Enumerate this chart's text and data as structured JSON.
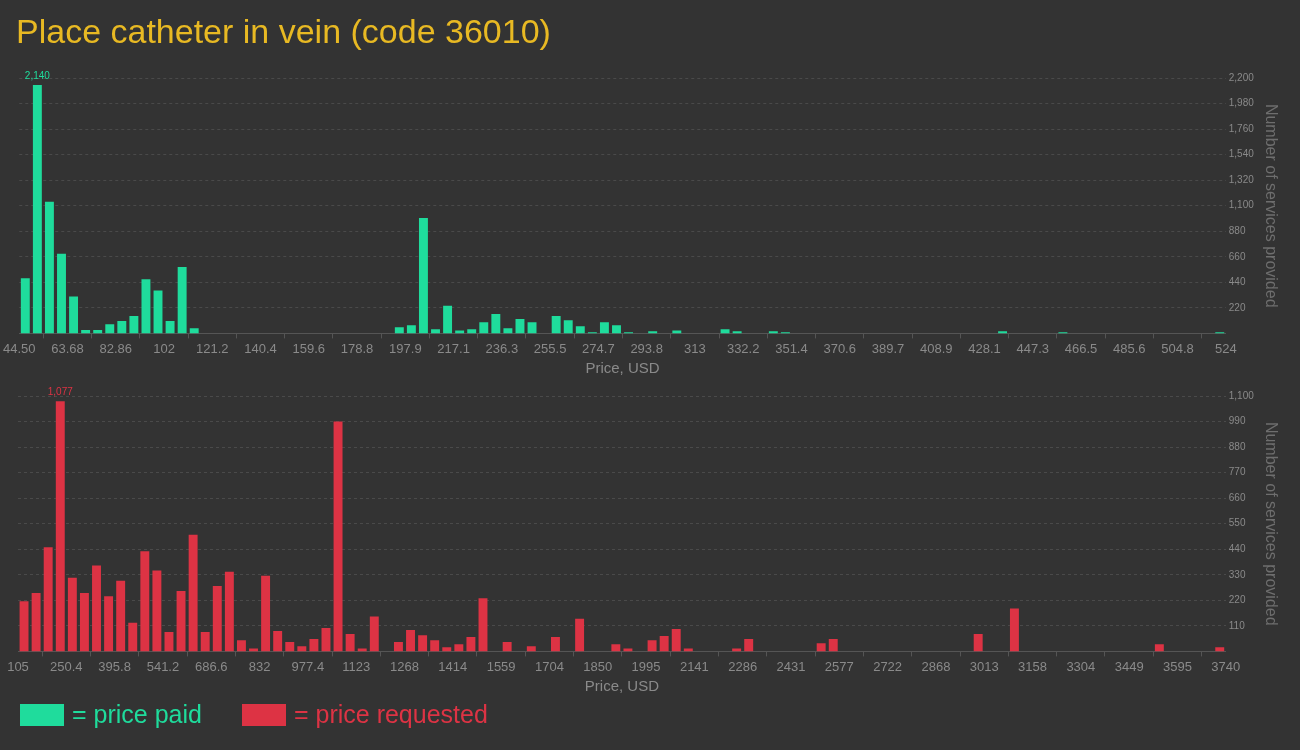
{
  "chart_data": [
    {
      "type": "histogram",
      "title": "Place catheter in vein (code 36010)",
      "xlabel": "Price, USD",
      "ylabel": "Number of services provided",
      "bins": [
        44.5,
        49.295,
        54.09,
        58.885,
        63.68,
        68.475,
        73.27,
        78.065,
        82.86,
        87.655,
        92.45,
        97.245,
        102.04,
        106.835,
        111.63,
        116.425,
        121.22,
        126.015,
        130.81,
        135.605,
        140.4,
        145.195,
        149.99,
        154.785,
        159.58,
        164.375,
        169.17,
        173.965,
        178.76,
        183.555,
        188.35,
        193.145,
        197.94,
        202.735,
        207.53,
        212.325,
        217.12,
        221.915,
        226.71,
        231.505,
        236.3,
        241.095,
        245.89,
        250.685,
        255.48,
        260.275,
        265.07,
        269.865,
        274.66,
        279.455,
        284.25,
        289.045,
        293.84,
        298.635,
        303.43,
        308.225,
        313.02,
        317.815,
        322.61,
        327.405,
        332.2,
        336.995,
        341.79,
        346.585,
        351.38,
        356.175,
        360.97,
        365.765,
        370.56,
        375.355,
        380.15,
        384.945,
        389.74,
        394.535,
        399.33,
        404.125,
        408.92,
        413.715,
        418.51,
        423.305,
        428.1,
        432.895,
        437.69,
        442.485,
        447.28,
        452.075,
        456.87,
        461.665,
        466.46,
        471.255,
        476.05,
        480.845,
        485.64,
        490.435,
        495.23,
        500.025,
        504.82,
        509.615,
        514.41,
        519.205,
        524
      ],
      "series": [
        {
          "name": "= price paid",
          "color": "#1fdc9c",
          "values": [
            475,
            2140,
            1135,
            686,
            317,
            29,
            29,
            79,
            106,
            150,
            466,
            370,
            106,
            572,
            44,
            0,
            0,
            0,
            0,
            0,
            0,
            0,
            0,
            0,
            0,
            0,
            0,
            0,
            0,
            0,
            0,
            53,
            70,
            994,
            35,
            238,
            26,
            35,
            97,
            167,
            44,
            123,
            97,
            0,
            150,
            114,
            62,
            9,
            97,
            70,
            9,
            0,
            18,
            0,
            26,
            0,
            0,
            0,
            35,
            18,
            0,
            0,
            18,
            9,
            0,
            0,
            0,
            0,
            0,
            0,
            0,
            0,
            0,
            0,
            0,
            0,
            0,
            0,
            0,
            0,
            0,
            18,
            0,
            0,
            0,
            0,
            9,
            0,
            0,
            0,
            0,
            0,
            0,
            0,
            0,
            0,
            0,
            0,
            0,
            9
          ],
          "value_labels": [
            null,
            "2,140",
            null,
            null,
            null,
            null,
            null,
            null,
            null,
            null,
            null,
            null,
            null,
            null,
            null,
            null,
            null,
            null,
            null,
            null,
            null,
            null,
            null,
            null,
            null,
            null,
            null,
            null,
            null,
            null,
            null,
            null,
            null,
            null,
            null,
            null,
            null,
            null,
            null,
            null,
            null,
            null,
            null,
            null,
            null,
            null,
            null,
            null,
            null,
            null,
            null,
            null,
            null,
            null,
            null,
            null,
            null,
            null,
            null,
            null,
            null,
            null,
            null,
            null,
            null,
            null,
            null,
            null,
            null,
            null,
            null,
            null,
            null,
            null,
            null,
            null,
            null,
            null,
            null,
            null,
            null,
            null,
            null,
            null,
            null,
            null,
            null,
            null,
            null,
            null,
            null,
            null,
            null,
            null,
            null,
            null,
            null,
            null,
            null,
            null
          ]
        }
      ],
      "xlim": [
        44.5,
        524
      ],
      "xticks": [
        {
          "value": 44.5,
          "label": "44.50"
        },
        63.68,
        82.86,
        {
          "value": 102.04,
          "label": "102"
        },
        {
          "value": 121.22,
          "label": "121.2"
        },
        140.4,
        {
          "value": 159.58,
          "label": "159.6"
        },
        {
          "value": 178.76,
          "label": "178.8"
        },
        {
          "value": 197.94,
          "label": "197.9"
        },
        {
          "value": 217.12,
          "label": "217.1"
        },
        236.3,
        {
          "value": 255.48,
          "label": "255.5"
        },
        {
          "value": 274.66,
          "label": "274.7"
        },
        {
          "value": 293.84,
          "label": "293.8"
        },
        {
          "value": 313.02,
          "label": "313"
        },
        332.2,
        {
          "value": 351.38,
          "label": "351.4"
        },
        {
          "value": 370.56,
          "label": "370.6"
        },
        {
          "value": 389.74,
          "label": "389.7"
        },
        {
          "value": 408.92,
          "label": "408.9"
        },
        428.1,
        {
          "value": 447.28,
          "label": "447.3"
        },
        {
          "value": 466.46,
          "label": "466.5"
        },
        {
          "value": 485.64,
          "label": "485.6"
        },
        {
          "value": 504.82,
          "label": "504.8"
        },
        524
      ],
      "ylim": [
        0,
        2200
      ],
      "yticks": [
        220,
        440,
        660,
        880,
        {
          "value": 1100,
          "label": "1,100"
        },
        {
          "value": 1320,
          "label": "1,320"
        },
        {
          "value": 1540,
          "label": "1,540"
        },
        {
          "value": 1760,
          "label": "1,760"
        },
        {
          "value": 1980,
          "label": "1,980"
        },
        {
          "value": 2200,
          "label": "2,200"
        }
      ],
      "grid": "y",
      "legend": "bottom left"
    },
    {
      "type": "histogram",
      "xlabel": "Price, USD",
      "ylabel": "Number of services provided",
      "bins": [
        105,
        141.35,
        177.7,
        214.05,
        250.4,
        286.75,
        323.1,
        359.45,
        395.8,
        432.15,
        468.5,
        504.85,
        541.2,
        577.55,
        613.9,
        650.25,
        686.6,
        722.95,
        759.3,
        795.65,
        832,
        868.35,
        904.7,
        941.05,
        977.4,
        1013.75,
        1050.1,
        1086.45,
        1122.8,
        1159.15,
        1195.5,
        1231.85,
        1268.2,
        1304.55,
        1340.9,
        1377.25,
        1413.6,
        1449.95,
        1486.3,
        1522.65,
        1559,
        1595.35,
        1631.7,
        1668.05,
        1704.4,
        1740.75,
        1777.1,
        1813.45,
        1849.8,
        1886.15,
        1922.5,
        1958.85,
        1995.2,
        2031.55,
        2067.9,
        2104.25,
        2140.6,
        2176.95,
        2213.3,
        2249.65,
        2286,
        2322.35,
        2358.7,
        2395.05,
        2431.4,
        2467.75,
        2504.1,
        2540.45,
        2576.8,
        2613.15,
        2649.5,
        2685.85,
        2722.2,
        2758.55,
        2794.9,
        2831.25,
        2867.6,
        2903.95,
        2940.3,
        2976.65,
        3013,
        3049.35,
        3085.7,
        3122.05,
        3158.4,
        3194.75,
        3231.1,
        3267.45,
        3303.8,
        3340.15,
        3376.5,
        3412.85,
        3449.2,
        3485.55,
        3521.9,
        3558.25,
        3594.6,
        3630.95,
        3667.3,
        3703.65,
        3740
      ],
      "series": [
        {
          "name": "= price requested",
          "color": "#dd3344",
          "values": [
            216,
            251,
            449,
            1077,
            317,
            251,
            370,
            238,
            304,
            123,
            431,
            348,
            84,
            260,
            502,
            84,
            282,
            343,
            48,
            13,
            326,
            88,
            40,
            22,
            53,
            101,
            990,
            75,
            13,
            150,
            0,
            40,
            92,
            70,
            48,
            18,
            31,
            62,
            229,
            0,
            40,
            0,
            22,
            0,
            62,
            0,
            141,
            0,
            0,
            31,
            13,
            0,
            48,
            66,
            97,
            13,
            0,
            0,
            0,
            13,
            53,
            0,
            0,
            0,
            0,
            0,
            35,
            53,
            0,
            0,
            0,
            0,
            0,
            0,
            0,
            0,
            0,
            0,
            0,
            75,
            0,
            0,
            185,
            0,
            0,
            0,
            0,
            0,
            0,
            0,
            0,
            0,
            0,
            0,
            31,
            0,
            0,
            0,
            0,
            18
          ],
          "value_labels": [
            null,
            null,
            null,
            "1,077",
            null,
            null,
            null,
            null,
            null,
            null,
            null,
            null,
            null,
            null,
            null,
            null,
            null,
            null,
            null,
            null,
            null,
            null,
            null,
            null,
            null,
            null,
            null,
            null,
            null,
            null,
            null,
            null,
            null,
            null,
            null,
            null,
            null,
            null,
            null,
            null,
            null,
            null,
            null,
            null,
            null,
            null,
            null,
            null,
            null,
            null,
            null,
            null,
            null,
            null,
            null,
            null,
            null,
            null,
            null,
            null,
            null,
            null,
            null,
            null,
            null,
            null,
            null,
            null,
            null,
            null,
            null,
            null,
            null,
            null,
            null,
            null,
            null,
            null,
            null,
            null,
            null,
            null,
            null,
            null,
            null,
            null,
            null,
            null,
            null,
            null,
            null,
            null,
            null,
            null,
            null,
            null,
            null,
            null,
            null,
            null
          ]
        }
      ],
      "xlim": [
        105,
        3740
      ],
      "xticks": [
        105,
        250.4,
        395.8,
        541.2,
        686.6,
        832,
        977.4,
        {
          "value": 1122.8,
          "label": "1123"
        },
        {
          "value": 1268.2,
          "label": "1268"
        },
        {
          "value": 1413.6,
          "label": "1414"
        },
        1559,
        {
          "value": 1704.4,
          "label": "1704"
        },
        {
          "value": 1849.8,
          "label": "1850"
        },
        {
          "value": 1995.2,
          "label": "1995"
        },
        {
          "value": 2140.6,
          "label": "2141"
        },
        2286,
        {
          "value": 2431.4,
          "label": "2431"
        },
        {
          "value": 2576.8,
          "label": "2577"
        },
        {
          "value": 2722.2,
          "label": "2722"
        },
        {
          "value": 2867.6,
          "label": "2868"
        },
        3013,
        {
          "value": 3158.4,
          "label": "3158"
        },
        {
          "value": 3303.8,
          "label": "3304"
        },
        {
          "value": 3449.2,
          "label": "3449"
        },
        {
          "value": 3594.6,
          "label": "3595"
        },
        3740
      ],
      "ylim": [
        0,
        1100
      ],
      "yticks": [
        110,
        220,
        330,
        440,
        550,
        660,
        770,
        880,
        990,
        {
          "value": 1100,
          "label": "1,100"
        }
      ],
      "grid": "y",
      "legend": "bottom left"
    }
  ]
}
